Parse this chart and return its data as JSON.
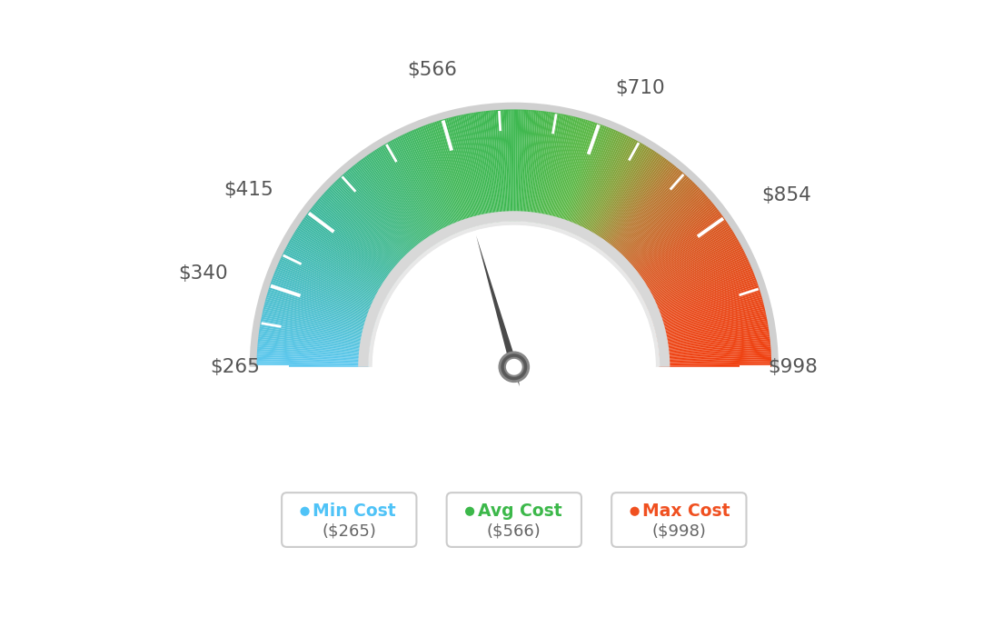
{
  "min_val": 265,
  "max_val": 998,
  "avg_val": 566,
  "min_color": "#4FC3F7",
  "avg_color": "#4CAF50",
  "max_color": "#FF5722",
  "needle_color": "#555555",
  "background_color": "#ffffff",
  "colors_gradient": [
    [
      0.0,
      "#5DC8F0"
    ],
    [
      0.1,
      "#4BBEC8"
    ],
    [
      0.2,
      "#3DB8A0"
    ],
    [
      0.3,
      "#40B878"
    ],
    [
      0.4,
      "#42B858"
    ],
    [
      0.5,
      "#3DB850"
    ],
    [
      0.6,
      "#5BB845"
    ],
    [
      0.66,
      "#88A038"
    ],
    [
      0.72,
      "#B87830"
    ],
    [
      0.8,
      "#D85820"
    ],
    [
      0.9,
      "#E84818"
    ],
    [
      1.0,
      "#F04010"
    ]
  ],
  "legend_items": [
    {
      "label": "Min Cost",
      "value": "($265)",
      "color": "#4FC3F7"
    },
    {
      "label": "Avg Cost",
      "value": "($566)",
      "color": "#3CB84A"
    },
    {
      "label": "Max Cost",
      "value": "($998)",
      "color": "#F05020"
    }
  ],
  "label_vals": {
    "265": "$265",
    "340": "$340",
    "415": "$415",
    "566": "$566",
    "710": "$710",
    "854": "$854",
    "998": "$998"
  }
}
